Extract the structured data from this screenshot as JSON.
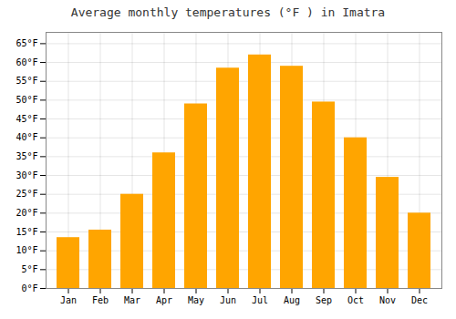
{
  "chart_data": {
    "type": "bar",
    "title": "Average monthly temperatures (°F ) in Imatra",
    "categories": [
      "Jan",
      "Feb",
      "Mar",
      "Apr",
      "May",
      "Jun",
      "Jul",
      "Aug",
      "Sep",
      "Oct",
      "Nov",
      "Dec"
    ],
    "values": [
      13.5,
      15.5,
      25.0,
      36.0,
      49.0,
      58.5,
      62.0,
      59.0,
      49.5,
      40.0,
      29.5,
      20.0
    ],
    "color": "#FFA500",
    "ylim": [
      0,
      68
    ],
    "yticks": [
      {
        "value": 0,
        "label": "0°F"
      },
      {
        "value": 5,
        "label": "5°F"
      },
      {
        "value": 10,
        "label": "10°F"
      },
      {
        "value": 15,
        "label": "15°F"
      },
      {
        "value": 20,
        "label": "20°F"
      },
      {
        "value": 25,
        "label": "25°F"
      },
      {
        "value": 30,
        "label": "30°F"
      },
      {
        "value": 35,
        "label": "35°F"
      },
      {
        "value": 40,
        "label": "40°F"
      },
      {
        "value": 45,
        "label": "45°F"
      },
      {
        "value": 50,
        "label": "50°F"
      },
      {
        "value": 55,
        "label": "55°F"
      },
      {
        "value": 60,
        "label": "60°F"
      },
      {
        "value": 65,
        "label": "65°F"
      }
    ],
    "grid": true
  }
}
